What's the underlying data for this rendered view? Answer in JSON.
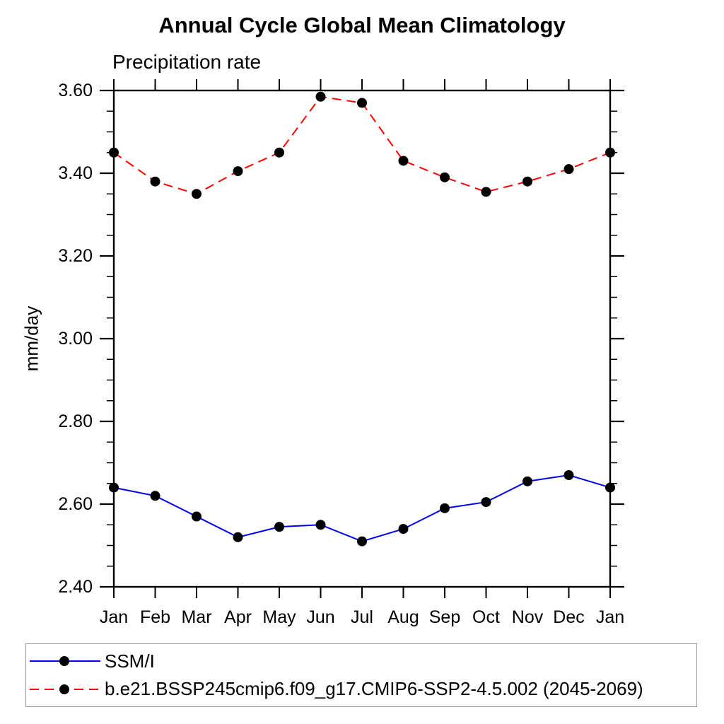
{
  "chart_data": {
    "type": "line",
    "title": "Annual Cycle Global Mean Climatology",
    "subtitle": "Precipitation rate",
    "ylabel": "mm/day",
    "categories": [
      "Jan",
      "Feb",
      "Mar",
      "Apr",
      "May",
      "Jun",
      "Jul",
      "Aug",
      "Sep",
      "Oct",
      "Nov",
      "Dec",
      "Jan"
    ],
    "ylim": [
      2.4,
      3.6
    ],
    "ytick_major": 0.2,
    "ytick_minor": 0.05,
    "grid": false,
    "legend_position": "bottom",
    "marker": "filled-circle",
    "marker_color": "#000000",
    "axis_color": "#000000",
    "series": [
      {
        "name": "SSM/I",
        "color": "#0000ee",
        "style": "solid",
        "values": [
          2.64,
          2.62,
          2.57,
          2.52,
          2.545,
          2.55,
          2.51,
          2.54,
          2.59,
          2.605,
          2.655,
          2.67,
          2.64
        ]
      },
      {
        "name": "b.e21.BSSP245cmip6.f09_g17.CMIP6-SSP2-4.5.002 (2045-2069)",
        "color": "#ff0000",
        "style": "dashed",
        "values": [
          3.45,
          3.38,
          3.35,
          3.405,
          3.45,
          3.585,
          3.57,
          3.43,
          3.39,
          3.355,
          3.38,
          3.41,
          3.45
        ]
      }
    ]
  }
}
